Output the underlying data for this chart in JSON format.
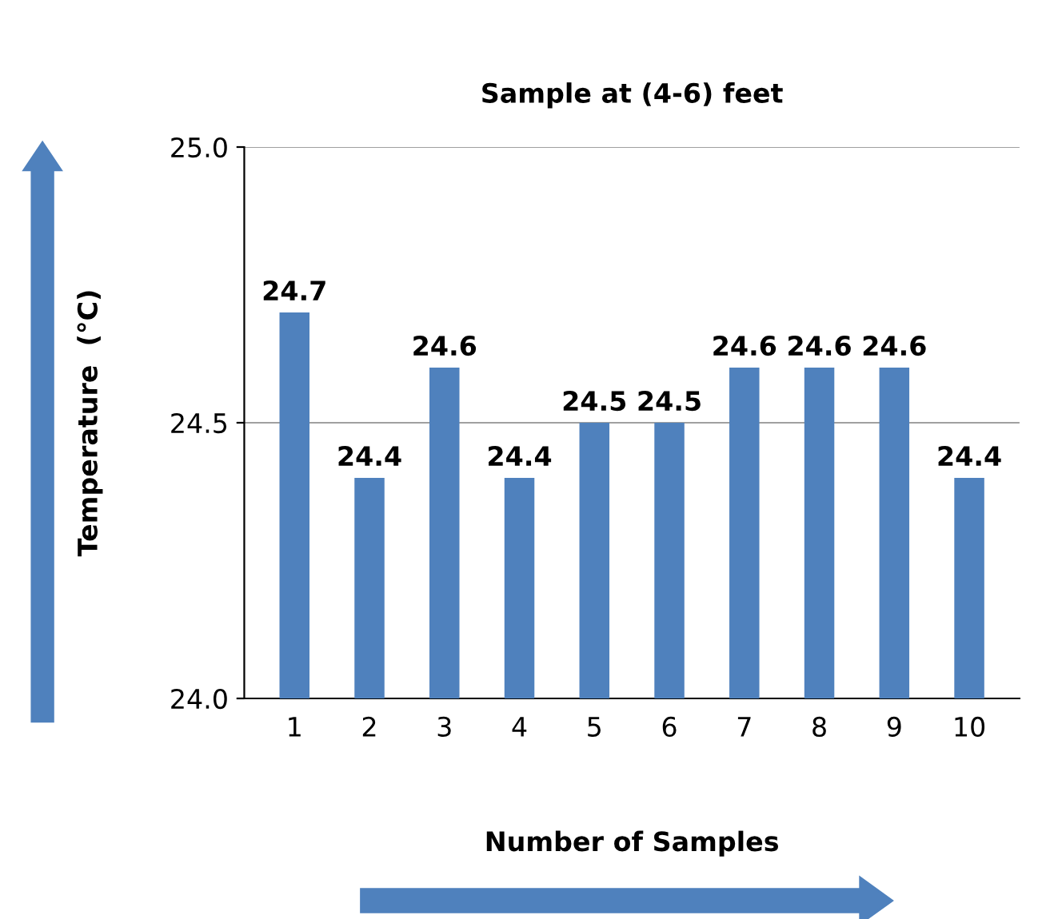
{
  "chart_data": {
    "type": "bar",
    "title": "Sample at (4-6) feet",
    "xlabel": "Number of Samples",
    "ylabel": "Temperature  (°C)",
    "categories": [
      "1",
      "2",
      "3",
      "4",
      "5",
      "6",
      "7",
      "8",
      "9",
      "10"
    ],
    "values": [
      24.7,
      24.4,
      24.6,
      24.4,
      24.5,
      24.5,
      24.6,
      24.6,
      24.6,
      24.4
    ],
    "color": "#4f81bd",
    "ylim": [
      24.0,
      25.0
    ],
    "yticks": [
      {
        "value": 24.0,
        "label": "24.0"
      },
      {
        "value": 24.5,
        "label": "24.5"
      },
      {
        "value": 25.0,
        "label": "25.0"
      }
    ],
    "grid": "y",
    "data_labels": true
  }
}
